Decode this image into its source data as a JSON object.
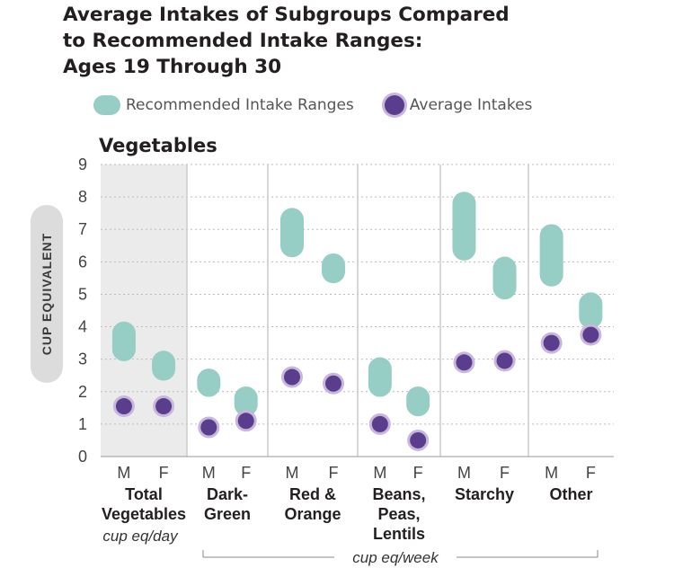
{
  "title_lines": [
    "Average Intakes of Subgroups Compared",
    "to Recommended Intake Ranges:",
    "Ages 19 Through 30"
  ],
  "legend": {
    "range_label": "Recommended Intake Ranges",
    "average_label": "Average Intakes"
  },
  "colors": {
    "range": "#96cdc4",
    "average": "#5a3d8c",
    "average_ring": "#c8b6dc",
    "highlight_band": "#ebebeb",
    "divider": "#cccccc",
    "grid": "#bbbbbb"
  },
  "chart_data": {
    "type": "scatter",
    "title": "Average Intakes of Subgroups Compared to Recommended Intake Ranges: Ages 19 Through 30",
    "subtitle": "Vegetables",
    "ylabel": "CUP EQUIVALENT",
    "ylim": [
      0,
      9
    ],
    "yticks": [
      "0",
      "1",
      "2",
      "3",
      "4",
      "5",
      "6",
      "7",
      "8",
      "9"
    ],
    "grid": true,
    "legend_position": "top",
    "sex_labels": [
      "M",
      "F"
    ],
    "groups": [
      {
        "label_lines": [
          "Total",
          "Vegetables"
        ],
        "unit": "cup eq/day",
        "highlighted": true,
        "ranges": [
          [
            3.3,
            3.8
          ],
          [
            2.7,
            2.9
          ]
        ],
        "averages": [
          1.55,
          1.55
        ]
      },
      {
        "label_lines": [
          "Dark-",
          "Green"
        ],
        "unit": "cup eq/week",
        "highlighted": false,
        "ranges": [
          [
            2.2,
            2.35
          ],
          [
            1.6,
            1.8
          ]
        ],
        "averages": [
          0.9,
          1.1
        ]
      },
      {
        "label_lines": [
          "Red &",
          "Orange"
        ],
        "unit": "cup eq/week",
        "highlighted": false,
        "ranges": [
          [
            6.5,
            7.3
          ],
          [
            5.7,
            5.9
          ]
        ],
        "averages": [
          2.45,
          2.25
        ]
      },
      {
        "label_lines": [
          "Beans,",
          "Peas,",
          "Lentils"
        ],
        "unit": "cup eq/week",
        "highlighted": false,
        "ranges": [
          [
            2.2,
            2.7
          ],
          [
            1.6,
            1.8
          ]
        ],
        "averages": [
          1.0,
          0.5
        ]
      },
      {
        "label_lines": [
          "Starchy"
        ],
        "unit": "cup eq/week",
        "highlighted": false,
        "ranges": [
          [
            6.4,
            7.8
          ],
          [
            5.2,
            5.8
          ]
        ],
        "averages": [
          2.9,
          2.95
        ]
      },
      {
        "label_lines": [
          "Other"
        ],
        "unit": "cup eq/week",
        "highlighted": false,
        "ranges": [
          [
            5.6,
            6.8
          ],
          [
            4.3,
            4.7
          ]
        ],
        "averages": [
          3.5,
          3.75
        ]
      }
    ],
    "weekly_unit_label": "cup eq/week",
    "daily_unit_label": "cup eq/day"
  }
}
